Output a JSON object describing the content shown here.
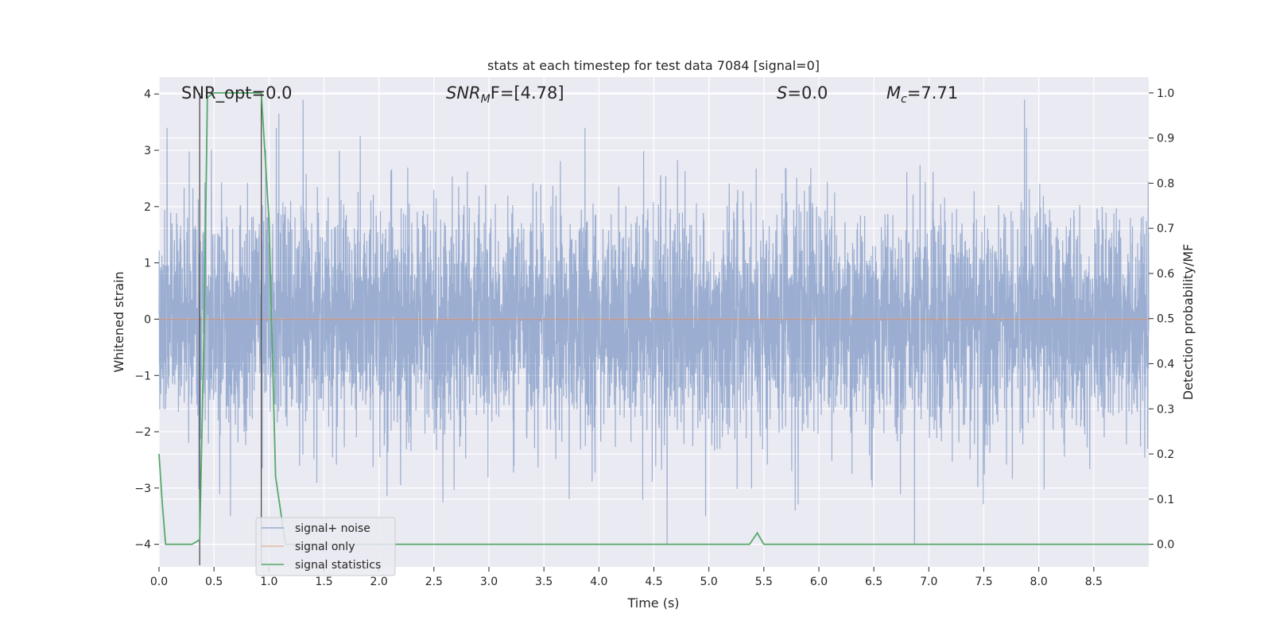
{
  "chart_data": {
    "type": "line",
    "title": "stats at each timestep for test data 7084 [signal=0]",
    "xlabel": "Time (s)",
    "ylabel": "Whitened strain",
    "y2label": "Detection probability/MF",
    "xlim": [
      0,
      9.0
    ],
    "ylim": [
      -4.4,
      4.3
    ],
    "y2lim": [
      -0.05,
      1.035
    ],
    "xticks": [
      0.0,
      0.5,
      1.0,
      1.5,
      2.0,
      2.5,
      3.0,
      3.5,
      4.0,
      4.5,
      5.0,
      5.5,
      6.0,
      6.5,
      7.0,
      7.5,
      8.0,
      8.5
    ],
    "xtick_labels": [
      "0.0",
      "0.5",
      "1.0",
      "1.5",
      "2.0",
      "2.5",
      "3.0",
      "3.5",
      "4.0",
      "4.5",
      "5.0",
      "5.5",
      "6.0",
      "6.5",
      "7.0",
      "7.5",
      "8.0",
      "8.5"
    ],
    "yticks": [
      4,
      3,
      2,
      1,
      0,
      -1,
      -2,
      -3,
      -4
    ],
    "ytick_labels": [
      "4",
      "3",
      "2",
      "1",
      "0",
      "−1",
      "−2",
      "−3",
      "−4"
    ],
    "y2ticks": [
      1.0,
      0.9,
      0.8,
      0.7,
      0.6,
      0.5,
      0.4,
      0.3,
      0.2,
      0.1,
      0.0
    ],
    "y2tick_labels": [
      "1.0",
      "0.9",
      "0.8",
      "0.7",
      "0.6",
      "0.5",
      "0.4",
      "0.3",
      "0.2",
      "0.1",
      "0.0"
    ],
    "grid": true,
    "legend_position": "lower-left",
    "annotations": {
      "snr_opt": "SNR_opt=0.0",
      "snr_mf_base": "SNR",
      "snr_mf_sub": "M",
      "snr_mf_rest": "F=[4.78]",
      "s_stat": "S",
      "s_stat_rest": "=0.0",
      "mc_base": "M",
      "mc_sub": "c",
      "mc_rest": "=7.71"
    },
    "vlines": [
      0.37,
      0.93
    ],
    "series": [
      {
        "name": "signal+ noise",
        "axis": "left",
        "color": "#4c72b0",
        "noise_sample_rate": 600,
        "noise_sigma": 1.0,
        "noise_seed": 7084,
        "peaks": [
          {
            "x": 1.31,
            "y": 3.9
          },
          {
            "x": 7.87,
            "y": 3.9
          },
          {
            "x": 1.09,
            "y": 3.65
          },
          {
            "x": 4.62,
            "y": -4.0
          },
          {
            "x": 6.87,
            "y": -4.0
          },
          {
            "x": 4.97,
            "y": -3.5
          },
          {
            "x": 0.65,
            "y": -3.5
          }
        ]
      },
      {
        "name": "signal only",
        "axis": "left",
        "color": "#dd8452",
        "x": [
          0.0,
          9.0
        ],
        "y": [
          0.0,
          0.0
        ]
      },
      {
        "name": "signal statistics",
        "axis": "right",
        "color": "#55a868",
        "x": [
          0.0,
          0.03,
          0.06,
          0.3,
          0.37,
          0.41,
          0.44,
          0.5,
          0.93,
          1.0,
          1.06,
          1.15,
          1.5,
          2.0,
          3.0,
          4.0,
          5.0,
          5.37,
          5.44,
          5.5,
          6.0,
          7.0,
          8.0,
          9.0
        ],
        "y": [
          0.2,
          0.09,
          0.0,
          0.0,
          0.01,
          0.48,
          0.99,
          1.0,
          1.0,
          0.72,
          0.15,
          0.0,
          0.0,
          0.0,
          0.0,
          0.0,
          0.0,
          0.0,
          0.025,
          0.0,
          0.0,
          0.0,
          0.0,
          0.0
        ]
      }
    ]
  }
}
